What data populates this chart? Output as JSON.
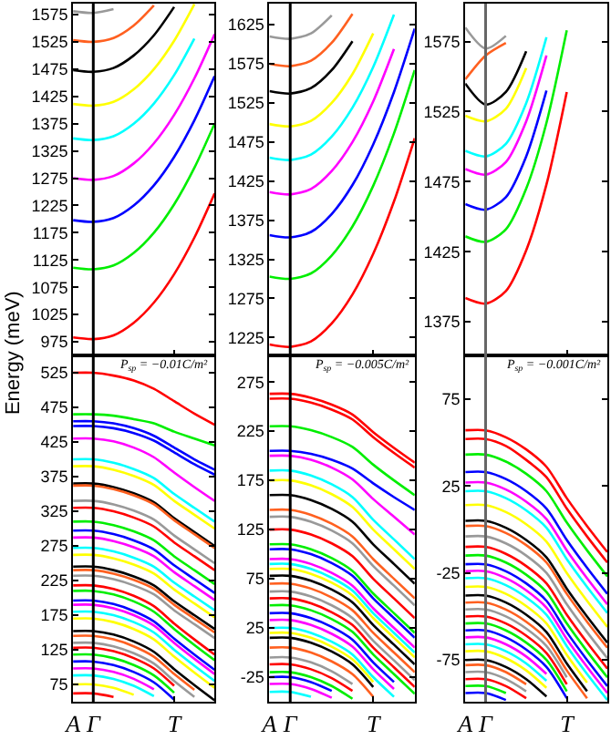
{
  "chart_data": [
    {
      "type": "line",
      "ylabel": "Energy (meV)",
      "tick_labels": "y",
      "categories": [
        "A",
        "Γ",
        null,
        null,
        null,
        "T",
        null,
        null
      ],
      "ylim": [
        950,
        1595
      ],
      "yticks": [
        975,
        1025,
        1075,
        1125,
        1175,
        1225,
        1275,
        1325,
        1375,
        1425,
        1475,
        1525,
        1575
      ],
      "ref_lines": [
        {
          "axis": "x",
          "value": "Γ",
          "color": "#000000"
        }
      ],
      "series": [
        {
          "color": "#ff0000",
          "values": [
            983,
            980,
            987,
            1010,
            1047,
            1099,
            1166,
            1247
          ]
        },
        {
          "color": "#00ee00",
          "values": [
            1111,
            1108,
            1115,
            1138,
            1175,
            1227,
            1294,
            1375
          ]
        },
        {
          "color": "#0000ff",
          "values": [
            1198,
            1195,
            1202,
            1225,
            1262,
            1314,
            1381,
            1462
          ]
        },
        {
          "color": "#ff00ff",
          "values": [
            1275,
            1272,
            1279,
            1302,
            1339,
            1391,
            1458,
            1539
          ]
        },
        {
          "color": "#00ffff",
          "values": [
            1348,
            1345,
            1352,
            1375,
            1412,
            1464,
            1531,
            null
          ]
        },
        {
          "color": "#ffff00",
          "values": [
            1411,
            1408,
            1415,
            1438,
            1475,
            1527,
            1594,
            null
          ]
        },
        {
          "color": "#000000",
          "values": [
            1473,
            1470,
            1477,
            1500,
            1537,
            1589,
            null,
            null
          ]
        },
        {
          "color": "#ff6020",
          "values": [
            1528,
            1525,
            1532,
            1555,
            1592,
            null,
            null,
            null
          ]
        },
        {
          "color": "#999999",
          "values": [
            1581,
            1578,
            1585,
            null,
            null,
            null,
            null,
            null
          ]
        }
      ]
    },
    {
      "type": "line",
      "tick_labels": "y",
      "categories": [
        "A",
        "Γ",
        null,
        null,
        null,
        "T",
        null,
        null
      ],
      "ylim": [
        1202,
        1652
      ],
      "yticks": [
        1225,
        1275,
        1325,
        1375,
        1425,
        1475,
        1525,
        1575,
        1625
      ],
      "ref_lines": [
        {
          "axis": "x",
          "value": "Γ",
          "color": "#000000"
        }
      ],
      "series": [
        {
          "color": "#ff0000",
          "values": [
            1216,
            1213,
            1220,
            1243,
            1280,
            1332,
            1399,
            1480
          ]
        },
        {
          "color": "#00ee00",
          "values": [
            1303,
            1300,
            1307,
            1330,
            1367,
            1419,
            1486,
            1567
          ]
        },
        {
          "color": "#0000ff",
          "values": [
            1356,
            1353,
            1360,
            1383,
            1420,
            1472,
            1539,
            1620
          ]
        },
        {
          "color": "#ff00ff",
          "values": [
            1411,
            1408,
            1415,
            1438,
            1475,
            1527,
            1594,
            null
          ]
        },
        {
          "color": "#00ffff",
          "values": [
            1455,
            1452,
            1459,
            1482,
            1519,
            1571,
            1638,
            null
          ]
        },
        {
          "color": "#ffff00",
          "values": [
            1498,
            1495,
            1502,
            1525,
            1562,
            1614,
            null,
            null
          ]
        },
        {
          "color": "#000000",
          "values": [
            1540,
            1537,
            1544,
            1567,
            1604,
            null,
            null,
            null
          ]
        },
        {
          "color": "#ff6020",
          "values": [
            1575,
            1572,
            1579,
            1602,
            1639,
            null,
            null,
            null
          ]
        },
        {
          "color": "#999999",
          "values": [
            1610,
            1607,
            1614,
            1637,
            null,
            null,
            null,
            null
          ]
        }
      ]
    },
    {
      "type": "line",
      "tick_labels": "y",
      "categories": [
        "A",
        "Γ",
        null,
        null,
        null,
        "T",
        null,
        null
      ],
      "ylim": [
        1351,
        1602
      ],
      "yticks": [
        1375,
        1425,
        1475,
        1525,
        1575
      ],
      "ref_lines": [
        {
          "axis": "x",
          "value": "Γ",
          "color": "#666666"
        }
      ],
      "series": [
        {
          "color": "#ff0000",
          "values": [
            1392,
            1388,
            1397,
            1426,
            1473,
            1539,
            null,
            null
          ]
        },
        {
          "color": "#00ee00",
          "values": [
            1436,
            1432,
            1441,
            1470,
            1517,
            1583,
            null,
            null
          ]
        },
        {
          "color": "#0000ff",
          "values": [
            1459,
            1455,
            1464,
            1493,
            1540,
            null,
            null,
            null
          ]
        },
        {
          "color": "#ff00ff",
          "values": [
            1484,
            1480,
            1489,
            1518,
            1565,
            null,
            null,
            null
          ]
        },
        {
          "color": "#00ffff",
          "values": [
            1497,
            1493,
            1502,
            1531,
            1578,
            null,
            null,
            null
          ]
        },
        {
          "color": "#ffff00",
          "values": [
            1522,
            1518,
            1527,
            1556,
            null,
            null,
            null,
            null
          ]
        },
        {
          "color": "#000000",
          "values": [
            1545,
            1530,
            1539,
            1568,
            null,
            null,
            null,
            null
          ]
        },
        {
          "color": "#ff6020",
          "values": [
            1548,
            1565,
            1574,
            null,
            null,
            null,
            null,
            null
          ]
        },
        {
          "color": "#999999",
          "values": [
            1585,
            1570,
            1579,
            null,
            null,
            null,
            null,
            null
          ]
        }
      ]
    },
    {
      "type": "line",
      "categories": [
        "A",
        "Γ",
        null,
        null,
        null,
        "T",
        null,
        null
      ],
      "ylim": [
        50,
        550
      ],
      "yticks": [
        75,
        125,
        175,
        225,
        275,
        325,
        375,
        425,
        475,
        525
      ],
      "ref_lines": [
        {
          "axis": "x",
          "value": "Γ",
          "color": "#000000"
        }
      ],
      "annotations": [
        "P$_{sp}$ = −0.01C/m²"
      ],
      "series": [
        {
          "color": "#ff0000",
          "values": [
            525,
            525,
            521,
            514,
            502,
            484,
            466,
            450
          ]
        },
        {
          "color": "#00ee00",
          "values": [
            465,
            465,
            463,
            458,
            452,
            440,
            430,
            420
          ]
        },
        {
          "color": "#0000ff",
          "values": [
            455,
            455,
            452,
            445,
            434,
            417,
            400,
            385
          ]
        },
        {
          "color": "#0000ff",
          "values": [
            448,
            448,
            445,
            438,
            427,
            410,
            393,
            378
          ]
        },
        {
          "color": "#ff00ff",
          "values": [
            430,
            430,
            426,
            417,
            403,
            381,
            360,
            340
          ]
        },
        {
          "color": "#00ffff",
          "values": [
            400,
            400,
            395,
            386,
            373,
            350,
            330,
            310
          ]
        },
        {
          "color": "#ffff00",
          "values": [
            390,
            390,
            385,
            376,
            363,
            340,
            320,
            300
          ]
        },
        {
          "color": "#000000",
          "values": [
            365,
            365,
            360,
            351,
            338,
            315,
            295,
            275
          ]
        },
        {
          "color": "#ff6020",
          "values": [
            362,
            362,
            357,
            348,
            335,
            312,
            292,
            272
          ]
        },
        {
          "color": "#999999",
          "values": [
            340,
            340,
            335,
            326,
            313,
            290,
            270,
            250
          ]
        },
        {
          "color": "#ff0000",
          "values": [
            330,
            330,
            325,
            316,
            303,
            280,
            260,
            240
          ]
        },
        {
          "color": "#00ee00",
          "values": [
            310,
            310,
            305,
            296,
            283,
            260,
            240,
            220
          ]
        },
        {
          "color": "#0000ff",
          "values": [
            297,
            297,
            292,
            283,
            270,
            247,
            227,
            207
          ]
        },
        {
          "color": "#ff00ff",
          "values": [
            287,
            287,
            282,
            273,
            260,
            237,
            217,
            197
          ]
        },
        {
          "color": "#00ffff",
          "values": [
            272,
            272,
            267,
            258,
            245,
            222,
            202,
            182
          ]
        },
        {
          "color": "#ffff00",
          "values": [
            262,
            262,
            257,
            248,
            235,
            212,
            192,
            172
          ]
        },
        {
          "color": "#000000",
          "values": [
            245,
            245,
            240,
            231,
            218,
            195,
            175,
            155
          ]
        },
        {
          "color": "#ff6020",
          "values": [
            240,
            240,
            235,
            226,
            213,
            190,
            170,
            150
          ]
        },
        {
          "color": "#999999",
          "values": [
            232,
            232,
            227,
            218,
            205,
            182,
            162,
            142
          ]
        },
        {
          "color": "#ff0000",
          "values": [
            218,
            218,
            213,
            203,
            188,
            163,
            140,
            118
          ]
        },
        {
          "color": "#00ee00",
          "values": [
            210,
            210,
            205,
            195,
            180,
            155,
            132,
            110
          ]
        },
        {
          "color": "#0000ff",
          "values": [
            196,
            196,
            191,
            181,
            166,
            141,
            118,
            96
          ]
        },
        {
          "color": "#ff00ff",
          "values": [
            190,
            190,
            185,
            175,
            160,
            135,
            112,
            90
          ]
        },
        {
          "color": "#00ffff",
          "values": [
            180,
            180,
            175,
            165,
            150,
            125,
            102,
            80
          ]
        },
        {
          "color": "#ffff00",
          "values": [
            170,
            170,
            165,
            155,
            140,
            115,
            92,
            70
          ]
        },
        {
          "color": "#000000",
          "values": [
            152,
            152,
            147,
            137,
            122,
            97,
            74,
            52
          ]
        },
        {
          "color": "#ff6020",
          "values": [
            145,
            145,
            140,
            130,
            115,
            90,
            67,
            null
          ]
        },
        {
          "color": "#999999",
          "values": [
            135,
            135,
            130,
            120,
            105,
            80,
            57,
            null
          ]
        },
        {
          "color": "#ff0000",
          "values": [
            128,
            128,
            123,
            113,
            98,
            73,
            null,
            null
          ]
        },
        {
          "color": "#00ee00",
          "values": [
            118,
            118,
            113,
            103,
            88,
            63,
            null,
            null
          ]
        },
        {
          "color": "#0000ff",
          "values": [
            108,
            108,
            103,
            93,
            78,
            53,
            null,
            null
          ]
        },
        {
          "color": "#ff00ff",
          "values": [
            98,
            98,
            93,
            83,
            68,
            null,
            null,
            null
          ]
        },
        {
          "color": "#00ffff",
          "values": [
            88,
            88,
            83,
            73,
            58,
            null,
            null,
            null
          ]
        },
        {
          "color": "#ffff00",
          "values": [
            75,
            75,
            70,
            60,
            null,
            null,
            null,
            null
          ]
        },
        {
          "color": "#ff0000",
          "values": [
            62,
            62,
            57,
            null,
            null,
            null,
            null,
            null
          ]
        }
      ]
    },
    {
      "type": "line",
      "categories": [
        "A",
        "Γ",
        null,
        null,
        null,
        "T",
        null,
        null
      ],
      "ylim": [
        -50,
        302
      ],
      "yticks": [
        -25,
        25,
        75,
        125,
        175,
        225,
        275
      ],
      "ref_lines": [
        {
          "axis": "x",
          "value": "Γ",
          "color": "#000000"
        }
      ],
      "annotations": [
        "P$_{sp}$ = −0.005C/m²"
      ],
      "series": [
        {
          "color": "#ff0000",
          "values": [
            263,
            263,
            259,
            252,
            242,
            224,
            208,
            193
          ]
        },
        {
          "color": "#ff0000",
          "values": [
            258,
            258,
            254,
            247,
            237,
            219,
            203,
            188
          ]
        },
        {
          "color": "#00ee00",
          "values": [
            230,
            230,
            226,
            219,
            209,
            191,
            175,
            160
          ]
        },
        {
          "color": "#0000ff",
          "values": [
            205,
            205,
            202,
            196,
            187,
            172,
            158,
            145
          ]
        },
        {
          "color": "#ff00ff",
          "values": [
            200,
            200,
            196,
            188,
            176,
            156,
            138,
            120
          ]
        },
        {
          "color": "#00ffff",
          "values": [
            185,
            185,
            180,
            171,
            158,
            135,
            115,
            95
          ]
        },
        {
          "color": "#ffff00",
          "values": [
            175,
            175,
            170,
            161,
            148,
            125,
            105,
            85
          ]
        },
        {
          "color": "#000000",
          "values": [
            160,
            160,
            155,
            146,
            133,
            110,
            90,
            70
          ]
        },
        {
          "color": "#ff6020",
          "values": [
            145,
            145,
            140,
            131,
            118,
            95,
            75,
            55
          ]
        },
        {
          "color": "#999999",
          "values": [
            138,
            138,
            133,
            124,
            111,
            88,
            68,
            48
          ]
        },
        {
          "color": "#ff0000",
          "values": [
            125,
            125,
            120,
            111,
            98,
            75,
            55,
            35
          ]
        },
        {
          "color": "#00ee00",
          "values": [
            110,
            110,
            105,
            96,
            83,
            60,
            40,
            20
          ]
        },
        {
          "color": "#0000ff",
          "values": [
            105,
            105,
            100,
            91,
            78,
            55,
            35,
            15
          ]
        },
        {
          "color": "#ff00ff",
          "values": [
            95,
            95,
            90,
            81,
            68,
            45,
            25,
            5
          ]
        },
        {
          "color": "#00ffff",
          "values": [
            90,
            90,
            85,
            76,
            63,
            40,
            20,
            0
          ]
        },
        {
          "color": "#ffff00",
          "values": [
            85,
            85,
            80,
            71,
            58,
            35,
            15,
            -5
          ]
        },
        {
          "color": "#000000",
          "values": [
            78,
            78,
            73,
            64,
            51,
            28,
            8,
            -12
          ]
        },
        {
          "color": "#ff6020",
          "values": [
            70,
            70,
            65,
            56,
            43,
            20,
            0,
            -20
          ]
        },
        {
          "color": "#999999",
          "values": [
            62,
            62,
            57,
            48,
            35,
            12,
            -8,
            -28
          ]
        },
        {
          "color": "#ff0000",
          "values": [
            55,
            55,
            50,
            41,
            28,
            5,
            -15,
            -35
          ]
        },
        {
          "color": "#00ee00",
          "values": [
            48,
            48,
            43,
            34,
            21,
            -2,
            -22,
            -42
          ]
        },
        {
          "color": "#0000ff",
          "values": [
            40,
            40,
            35,
            26,
            13,
            -10,
            -30,
            null
          ]
        },
        {
          "color": "#ff00ff",
          "values": [
            33,
            33,
            28,
            19,
            6,
            -17,
            -37,
            null
          ]
        },
        {
          "color": "#00ffff",
          "values": [
            25,
            25,
            20,
            11,
            -2,
            -25,
            -45,
            null
          ]
        },
        {
          "color": "#ffff00",
          "values": [
            20,
            20,
            15,
            6,
            -7,
            -30,
            null,
            null
          ]
        },
        {
          "color": "#000000",
          "values": [
            15,
            15,
            10,
            1,
            -12,
            -35,
            null,
            null
          ]
        },
        {
          "color": "#ff6020",
          "values": [
            5,
            5,
            0,
            -9,
            -22,
            -45,
            null,
            null
          ]
        },
        {
          "color": "#999999",
          "values": [
            -5,
            -5,
            -10,
            -19,
            -32,
            null,
            null,
            null
          ]
        },
        {
          "color": "#ff0000",
          "values": [
            -12,
            -12,
            -17,
            -26,
            -39,
            null,
            null,
            null
          ]
        },
        {
          "color": "#00ee00",
          "values": [
            -20,
            -20,
            -25,
            -34,
            -47,
            null,
            null,
            null
          ]
        },
        {
          "color": "#0000ff",
          "values": [
            -25,
            -25,
            -30,
            -39,
            null,
            null,
            null,
            null
          ]
        },
        {
          "color": "#ff00ff",
          "values": [
            -32,
            -32,
            -37,
            -46,
            null,
            null,
            null,
            null
          ]
        },
        {
          "color": "#00ffff",
          "values": [
            -40,
            -40,
            -45,
            null,
            null,
            null,
            null,
            null
          ]
        }
      ]
    },
    {
      "type": "line",
      "categories": [
        "A",
        "Γ",
        null,
        null,
        null,
        "T",
        null,
        null
      ],
      "ylim": [
        -99,
        100
      ],
      "yticks": [
        -75,
        -25,
        25,
        75
      ],
      "ref_lines": [
        {
          "axis": "x",
          "value": "Γ",
          "color": "#666666"
        }
      ],
      "annotations": [
        "P$_{sp}$ = −0.001C/m²"
      ],
      "series": [
        {
          "color": "#ff0000",
          "values": [
            57,
            57,
            53,
            46,
            36,
            18,
            2,
            -13
          ]
        },
        {
          "color": "#ff0000",
          "values": [
            52,
            52,
            48,
            40,
            30,
            12,
            -4,
            -19
          ]
        },
        {
          "color": "#00ee00",
          "values": [
            43,
            43,
            39,
            32,
            22,
            4,
            -12,
            -27
          ]
        },
        {
          "color": "#0000ff",
          "values": [
            33,
            33,
            29,
            22,
            12,
            -6,
            -22,
            -37
          ]
        },
        {
          "color": "#ff00ff",
          "values": [
            27,
            27,
            23,
            16,
            6,
            -12,
            -28,
            -43
          ]
        },
        {
          "color": "#00ffff",
          "values": [
            22,
            22,
            18,
            11,
            1,
            -17,
            -33,
            -48
          ]
        },
        {
          "color": "#ffff00",
          "values": [
            14,
            14,
            10,
            3,
            -7,
            -25,
            -41,
            -56
          ]
        },
        {
          "color": "#000000",
          "values": [
            5,
            5,
            1,
            -6,
            -16,
            -34,
            -50,
            -65
          ]
        },
        {
          "color": "#ff6020",
          "values": [
            2,
            2,
            -2,
            -9,
            -19,
            -37,
            -53,
            -68
          ]
        },
        {
          "color": "#999999",
          "values": [
            -4,
            -4,
            -8,
            -15,
            -25,
            -43,
            -59,
            -74
          ]
        },
        {
          "color": "#ff0000",
          "values": [
            -10,
            -10,
            -14,
            -21,
            -31,
            -49,
            -65,
            -80
          ]
        },
        {
          "color": "#00ee00",
          "values": [
            -15,
            -15,
            -19,
            -26,
            -36,
            -54,
            -70,
            -85
          ]
        },
        {
          "color": "#0000ff",
          "values": [
            -20,
            -20,
            -24,
            -31,
            -41,
            -59,
            -75,
            -90
          ]
        },
        {
          "color": "#ff00ff",
          "values": [
            -24,
            -24,
            -28,
            -35,
            -45,
            -63,
            -79,
            -94
          ]
        },
        {
          "color": "#00ffff",
          "values": [
            -28,
            -28,
            -32,
            -39,
            -49,
            -67,
            -83,
            -98
          ]
        },
        {
          "color": "#ffff00",
          "values": [
            -33,
            -33,
            -37,
            -44,
            -54,
            -72,
            -88,
            null
          ]
        },
        {
          "color": "#000000",
          "values": [
            -38,
            -38,
            -42,
            -49,
            -59,
            -77,
            -93,
            null
          ]
        },
        {
          "color": "#ff6020",
          "values": [
            -42,
            -42,
            -46,
            -53,
            -63,
            -81,
            -97,
            null
          ]
        },
        {
          "color": "#999999",
          "values": [
            -46,
            -46,
            -50,
            -57,
            -67,
            -85,
            null,
            null
          ]
        },
        {
          "color": "#ff0000",
          "values": [
            -50,
            -50,
            -54,
            -61,
            -71,
            -89,
            null,
            null
          ]
        },
        {
          "color": "#00ee00",
          "values": [
            -54,
            -54,
            -58,
            -65,
            -75,
            -93,
            null,
            null
          ]
        },
        {
          "color": "#0000ff",
          "values": [
            -58,
            -58,
            -62,
            -69,
            -79,
            -97,
            null,
            null
          ]
        },
        {
          "color": "#ff00ff",
          "values": [
            -62,
            -62,
            -66,
            -73,
            -83,
            null,
            null,
            null
          ]
        },
        {
          "color": "#00ffff",
          "values": [
            -66,
            -66,
            -70,
            -77,
            -87,
            null,
            null,
            null
          ]
        },
        {
          "color": "#ffff00",
          "values": [
            -70,
            -70,
            -74,
            -81,
            -91,
            null,
            null,
            null
          ]
        },
        {
          "color": "#000000",
          "values": [
            -75,
            -75,
            -79,
            -86,
            -96,
            null,
            null,
            null
          ]
        },
        {
          "color": "#ff6020",
          "values": [
            -78,
            -78,
            -82,
            -89,
            null,
            null,
            null,
            null
          ]
        },
        {
          "color": "#999999",
          "values": [
            -82,
            -82,
            -86,
            -93,
            null,
            null,
            null,
            null
          ]
        },
        {
          "color": "#ff0000",
          "values": [
            -86,
            -86,
            -90,
            -97,
            null,
            null,
            null,
            null
          ]
        },
        {
          "color": "#00ee00",
          "values": [
            -90,
            -90,
            -94,
            null,
            null,
            null,
            null,
            null
          ]
        },
        {
          "color": "#0000ff",
          "values": [
            -94,
            -94,
            -98,
            null,
            null,
            null,
            null,
            null
          ]
        }
      ]
    }
  ]
}
